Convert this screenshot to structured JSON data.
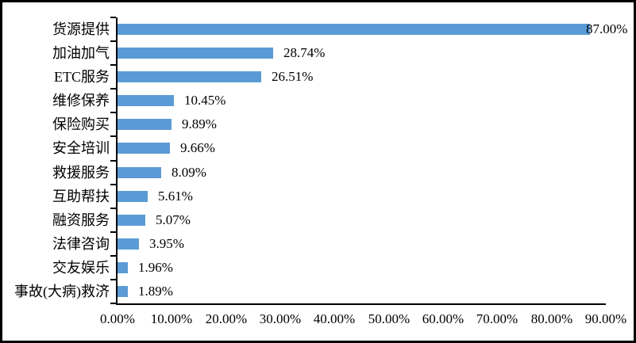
{
  "chart_data": {
    "type": "bar",
    "orientation": "horizontal",
    "title": "",
    "xlabel": "",
    "ylabel": "",
    "categories": [
      "货源提供",
      "加油加气",
      "ETC服务",
      "维修保养",
      "保险购买",
      "安全培训",
      "救援服务",
      "互助帮扶",
      "融资服务",
      "法律咨询",
      "交友娱乐",
      "事故(大病)救济"
    ],
    "values": [
      87.0,
      28.74,
      26.51,
      10.45,
      9.89,
      9.66,
      8.09,
      5.61,
      5.07,
      3.95,
      1.96,
      1.89
    ],
    "data_labels": [
      "87.00%",
      "28.74%",
      "26.51%",
      "10.45%",
      "9.89%",
      "9.66%",
      "8.09%",
      "5.61%",
      "5.07%",
      "3.95%",
      "1.96%",
      "1.89%"
    ],
    "x_tick_labels": [
      "0.00%",
      "10.00%",
      "20.00%",
      "30.00%",
      "40.00%",
      "50.00%",
      "60.00%",
      "70.00%",
      "80.00%",
      "90.00%"
    ],
    "xlim": [
      0,
      90
    ],
    "grid": false,
    "legend": false,
    "bar_color": "#5B9BD5",
    "axis_color": "#000000",
    "text_color": "#000000",
    "border_color": "#000000"
  }
}
